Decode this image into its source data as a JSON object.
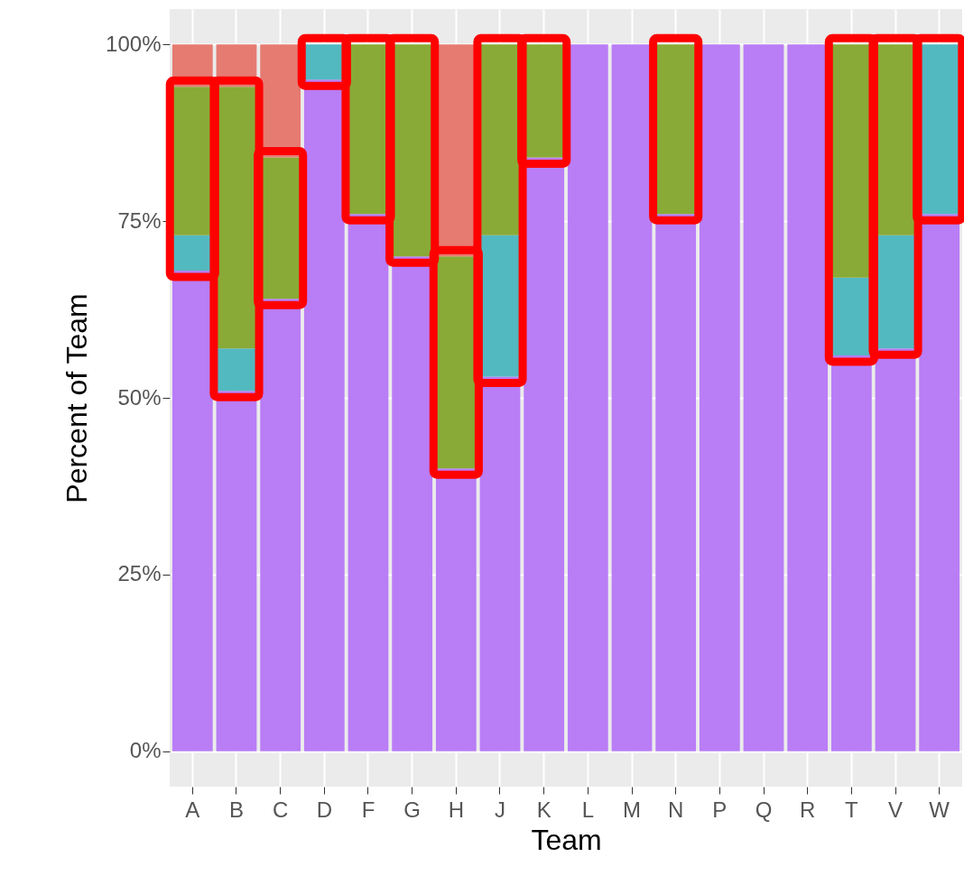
{
  "chart_data": {
    "type": "bar",
    "stacked": true,
    "xlabel": "Team",
    "ylabel": "Percent of Team",
    "categories": [
      "A",
      "B",
      "C",
      "D",
      "F",
      "G",
      "H",
      "J",
      "K",
      "L",
      "M",
      "N",
      "P",
      "Q",
      "R",
      "T",
      "V",
      "W"
    ],
    "series": [
      {
        "color": "#b97df6",
        "values": [
          68,
          51,
          64,
          95,
          76,
          70,
          40,
          53,
          84,
          100,
          100,
          76,
          100,
          100,
          100,
          56,
          57,
          76
        ]
      },
      {
        "color": "#53b9c0",
        "values": [
          5,
          6,
          0,
          5,
          0,
          0,
          0,
          20,
          0,
          0,
          0,
          0,
          0,
          0,
          0,
          11,
          16,
          24
        ]
      },
      {
        "color": "#89aa36",
        "values": [
          21,
          37,
          20,
          0,
          24,
          30,
          30,
          27,
          16,
          0,
          0,
          24,
          0,
          0,
          0,
          33,
          27,
          0
        ]
      },
      {
        "color": "#e67b72",
        "values": [
          6,
          6,
          16,
          0,
          0,
          0,
          30,
          0,
          0,
          0,
          0,
          0,
          0,
          0,
          0,
          0,
          0,
          0
        ]
      }
    ],
    "ylim": [
      -5,
      105
    ],
    "yticks": [
      {
        "value": 0,
        "label": "0%"
      },
      {
        "value": 25,
        "label": "25%"
      },
      {
        "value": 50,
        "label": "50%"
      },
      {
        "value": 75,
        "label": "75%"
      },
      {
        "value": 100,
        "label": "100%"
      }
    ],
    "grid": true
  }
}
